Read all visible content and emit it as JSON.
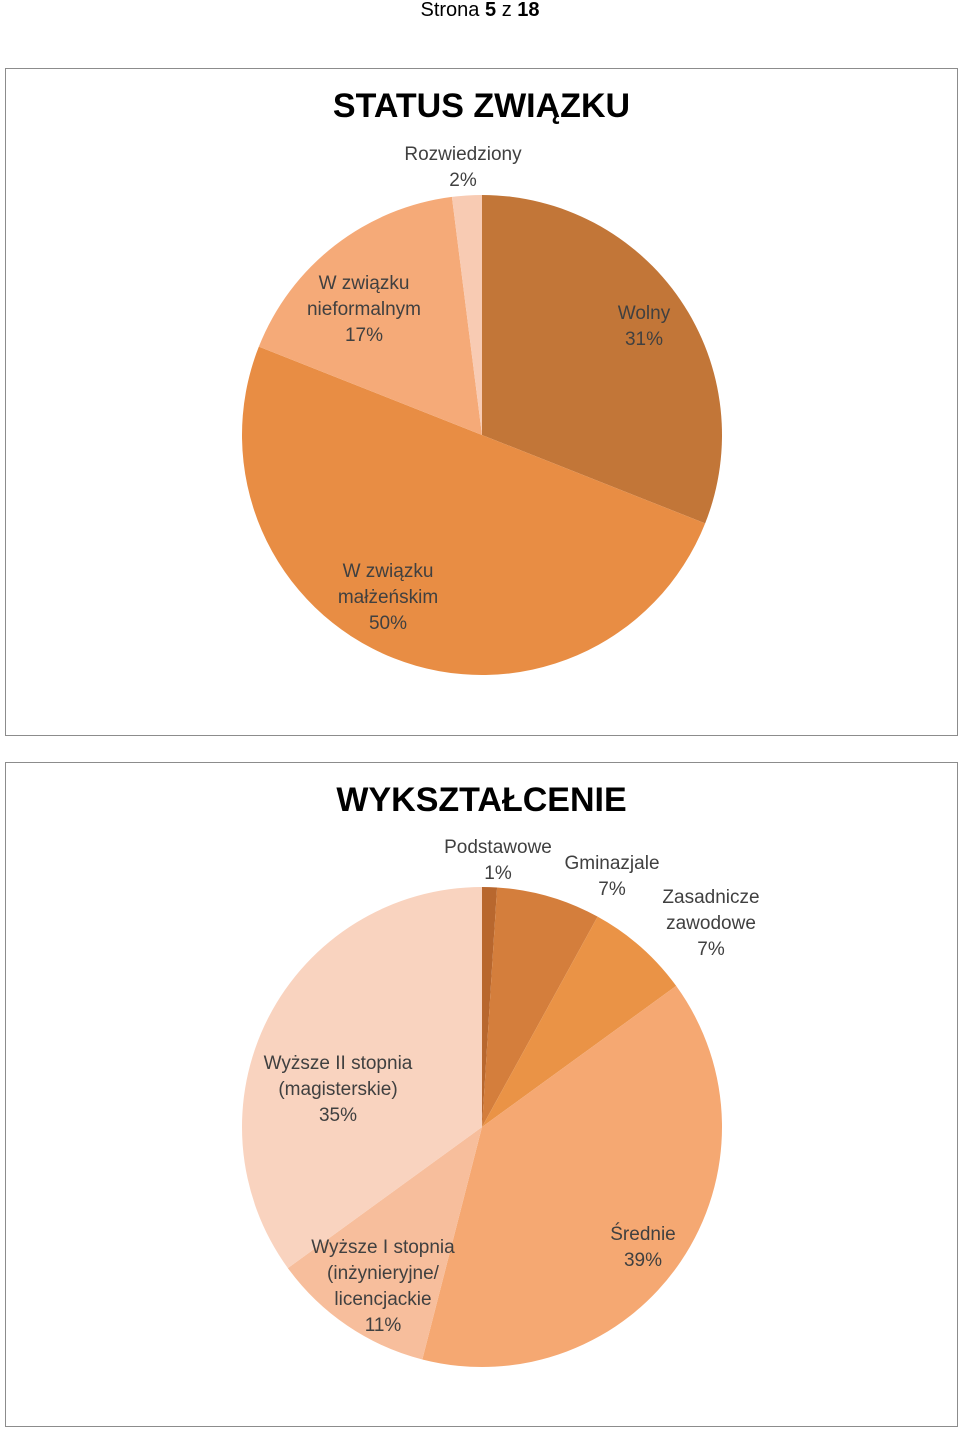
{
  "page": {
    "header_prefix": "Strona",
    "current_page": "5",
    "separator": "z",
    "total_pages": "18"
  },
  "chart_data": [
    {
      "type": "pie",
      "title": "STATUS ZWIĄZKU",
      "slices": [
        {
          "label": "Wolny",
          "value": 31,
          "percent": "31%",
          "color": "#C27638"
        },
        {
          "label": "W związku małżeńskim",
          "value": 50,
          "percent": "50%",
          "color": "#E88D44"
        },
        {
          "label": "W związku nieformalnym",
          "value": 17,
          "percent": "17%",
          "color": "#F5AA78"
        },
        {
          "label": "Rozwiedziony",
          "value": 2,
          "percent": "2%",
          "color": "#F8CBB3"
        }
      ]
    },
    {
      "type": "pie",
      "title": "WYKSZTAŁCENIE",
      "slices": [
        {
          "label": "Podstawowe",
          "value": 1,
          "percent": "1%",
          "color": "#B8672E"
        },
        {
          "label": "Gminazjale",
          "value": 7,
          "percent": "7%",
          "color": "#D47E3C"
        },
        {
          "label": "Zasadnicze zawodowe",
          "value": 7,
          "percent": "7%",
          "color": "#EA9346"
        },
        {
          "label": "Średnie",
          "value": 39,
          "percent": "39%",
          "color": "#F5A872"
        },
        {
          "label": "Wyższe I stopnia (inżynieryjne/ licencjackie",
          "value": 11,
          "percent": "11%",
          "color": "#F7BE9C"
        },
        {
          "label": "Wyższe II stopnia (magisterskie)",
          "value": 35,
          "percent": "35%",
          "color": "#F9D3BF"
        }
      ]
    }
  ]
}
